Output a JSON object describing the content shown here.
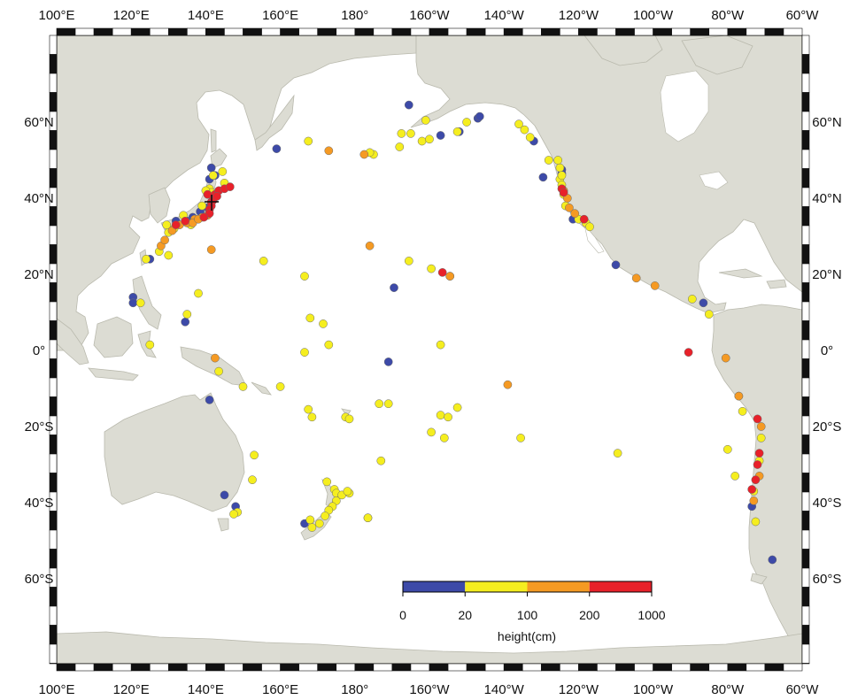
{
  "lon_labels": [
    "100°E",
    "120°E",
    "140°E",
    "160°E",
    "180°",
    "160°W",
    "140°W",
    "120°W",
    "100°W",
    "80°W",
    "60°W"
  ],
  "lat_labels": [
    "60°N",
    "40°N",
    "20°N",
    "0°",
    "20°S",
    "40°S",
    "60°S"
  ],
  "colorbar": {
    "title": "height(cm)",
    "tick_labels": [
      "0",
      "20",
      "100",
      "200",
      "1000"
    ],
    "colors": [
      "#3d4aa8",
      "#f5ee1f",
      "#f59a23",
      "#e8212a"
    ]
  },
  "epicenter_marker": "plus-icon",
  "observations": [
    {
      "lon": 132.0,
      "lat": 34.0,
      "c": 0
    },
    {
      "lon": 135.0,
      "lat": 34.0,
      "c": 0
    },
    {
      "lon": 136.5,
      "lat": 35.0,
      "c": 0
    },
    {
      "lon": 138.5,
      "lat": 36.5,
      "c": 0
    },
    {
      "lon": 140.5,
      "lat": 37.5,
      "c": 0
    },
    {
      "lon": 141.0,
      "lat": 45.0,
      "c": 0
    },
    {
      "lon": 142.5,
      "lat": 46.0,
      "c": 0
    },
    {
      "lon": 141.5,
      "lat": 48.0,
      "c": 0
    },
    {
      "lon": 125.0,
      "lat": 24.0,
      "c": 0
    },
    {
      "lon": 120.5,
      "lat": 14.0,
      "c": 0
    },
    {
      "lon": 120.5,
      "lat": 12.5,
      "c": 0
    },
    {
      "lon": 134.5,
      "lat": 7.5,
      "c": 0
    },
    {
      "lon": 145.0,
      "lat": -38.0,
      "c": 0
    },
    {
      "lon": 148.0,
      "lat": -41.0,
      "c": 0
    },
    {
      "lon": 141.0,
      "lat": -13.0,
      "c": 0
    },
    {
      "lon": 159.0,
      "lat": 53.0,
      "c": 0
    },
    {
      "lon": 166.5,
      "lat": -45.5,
      "c": 0
    },
    {
      "lon": -171.0,
      "lat": -3.0,
      "c": 0
    },
    {
      "lon": -169.5,
      "lat": 16.5,
      "c": 0
    },
    {
      "lon": -165.5,
      "lat": 64.5,
      "c": 0
    },
    {
      "lon": -157.0,
      "lat": 56.5,
      "c": 0
    },
    {
      "lon": -152.0,
      "lat": 57.5,
      "c": 0
    },
    {
      "lon": -147.0,
      "lat": 61.0,
      "c": 0
    },
    {
      "lon": -146.5,
      "lat": 61.5,
      "c": 0
    },
    {
      "lon": -132.0,
      "lat": 55.0,
      "c": 0
    },
    {
      "lon": -124.5,
      "lat": 47.5,
      "c": 0
    },
    {
      "lon": -124.5,
      "lat": 46.5,
      "c": 0
    },
    {
      "lon": -129.5,
      "lat": 45.5,
      "c": 0
    },
    {
      "lon": -121.5,
      "lat": 34.5,
      "c": 0
    },
    {
      "lon": -110.0,
      "lat": 22.5,
      "c": 0
    },
    {
      "lon": -86.5,
      "lat": 12.5,
      "c": 0
    },
    {
      "lon": -73.5,
      "lat": -41.0,
      "c": 0
    },
    {
      "lon": -68.0,
      "lat": -55.0,
      "c": 0
    },
    {
      "lon": -154.5,
      "lat": 19.5,
      "c": 1
    },
    {
      "lon": -159.5,
      "lat": 21.5,
      "c": 1
    },
    {
      "lon": -165.5,
      "lat": 23.5,
      "c": 1
    },
    {
      "lon": -175.0,
      "lat": 51.5,
      "c": 1
    },
    {
      "lon": -168.0,
      "lat": 53.5,
      "c": 1
    },
    {
      "lon": -162.0,
      "lat": 55.0,
      "c": 1
    },
    {
      "lon": -160.0,
      "lat": 55.5,
      "c": 1
    },
    {
      "lon": -152.5,
      "lat": 57.5,
      "c": 1
    },
    {
      "lon": -150.0,
      "lat": 60.0,
      "c": 1
    },
    {
      "lon": -136.0,
      "lat": 59.5,
      "c": 1
    },
    {
      "lon": -134.5,
      "lat": 58.0,
      "c": 1
    },
    {
      "lon": -133.0,
      "lat": 56.0,
      "c": 1
    },
    {
      "lon": -128.0,
      "lat": 50.0,
      "c": 1
    },
    {
      "lon": -125.0,
      "lat": 48.0,
      "c": 1
    },
    {
      "lon": -125.0,
      "lat": 45.0,
      "c": 1
    },
    {
      "lon": -124.5,
      "lat": 43.5,
      "c": 1
    },
    {
      "lon": -124.0,
      "lat": 41.0,
      "c": 1
    },
    {
      "lon": -120.0,
      "lat": 34.5,
      "c": 1
    },
    {
      "lon": -118.0,
      "lat": 33.5,
      "c": 1
    },
    {
      "lon": -117.0,
      "lat": 32.5,
      "c": 1
    },
    {
      "lon": -89.5,
      "lat": 13.5,
      "c": 1
    },
    {
      "lon": -85.0,
      "lat": 9.5,
      "c": 1
    },
    {
      "lon": -167.5,
      "lat": 57.0,
      "c": 1
    },
    {
      "lon": -176.0,
      "lat": 52.0,
      "c": 1
    },
    {
      "lon": 167.5,
      "lat": 55.0,
      "c": 1
    },
    {
      "lon": 131.5,
      "lat": 32.0,
      "c": 1
    },
    {
      "lon": 130.0,
      "lat": 31.0,
      "c": 1
    },
    {
      "lon": 127.5,
      "lat": 26.0,
      "c": 1
    },
    {
      "lon": 124.0,
      "lat": 24.0,
      "c": 1
    },
    {
      "lon": 122.5,
      "lat": 12.5,
      "c": 1
    },
    {
      "lon": 130.0,
      "lat": 25.0,
      "c": 1
    },
    {
      "lon": 135.0,
      "lat": 9.5,
      "c": 1
    },
    {
      "lon": 138.0,
      "lat": 15.0,
      "c": 1
    },
    {
      "lon": 125.0,
      "lat": 1.5,
      "c": 1
    },
    {
      "lon": 142.0,
      "lat": 46.0,
      "c": 1
    },
    {
      "lon": 141.0,
      "lat": 42.5,
      "c": 1
    },
    {
      "lon": 145.0,
      "lat": 44.0,
      "c": 1
    },
    {
      "lon": 144.5,
      "lat": 47.0,
      "c": 1
    },
    {
      "lon": 155.5,
      "lat": 23.5,
      "c": 1
    },
    {
      "lon": 166.5,
      "lat": 19.5,
      "c": 1
    },
    {
      "lon": 168.0,
      "lat": 8.5,
      "c": 1
    },
    {
      "lon": 171.5,
      "lat": 7.0,
      "c": 1
    },
    {
      "lon": 173.0,
      "lat": 1.5,
      "c": 1
    },
    {
      "lon": 166.5,
      "lat": -0.5,
      "c": 1
    },
    {
      "lon": 167.5,
      "lat": -15.5,
      "c": 1
    },
    {
      "lon": 168.5,
      "lat": -17.5,
      "c": 1
    },
    {
      "lon": 177.5,
      "lat": -17.5,
      "c": 1
    },
    {
      "lon": 178.5,
      "lat": -18.0,
      "c": 1
    },
    {
      "lon": -173.5,
      "lat": -14.0,
      "c": 1
    },
    {
      "lon": -171.0,
      "lat": -14.0,
      "c": 1
    },
    {
      "lon": -159.5,
      "lat": -21.5,
      "c": 1
    },
    {
      "lon": -157.0,
      "lat": -17.0,
      "c": 1
    },
    {
      "lon": -155.0,
      "lat": -17.5,
      "c": 1
    },
    {
      "lon": -152.5,
      "lat": -15.0,
      "c": 1
    },
    {
      "lon": -156.0,
      "lat": -23.0,
      "c": 1
    },
    {
      "lon": -135.5,
      "lat": -23.0,
      "c": 1
    },
    {
      "lon": -109.5,
      "lat": -27.0,
      "c": 1
    },
    {
      "lon": -157.0,
      "lat": 1.5,
      "c": 1
    },
    {
      "lon": -80.0,
      "lat": -26.0,
      "c": 1
    },
    {
      "lon": -77.0,
      "lat": -12.0,
      "c": 1
    },
    {
      "lon": -76.0,
      "lat": -16.0,
      "c": 1
    },
    {
      "lon": -71.0,
      "lat": -23.0,
      "c": 1
    },
    {
      "lon": -71.5,
      "lat": -29.0,
      "c": 1
    },
    {
      "lon": -72.5,
      "lat": -45.0,
      "c": 1
    },
    {
      "lon": 153.0,
      "lat": -27.5,
      "c": 1
    },
    {
      "lon": 152.5,
      "lat": -34.0,
      "c": 1
    },
    {
      "lon": 148.5,
      "lat": -42.5,
      "c": 1
    },
    {
      "lon": 147.5,
      "lat": -43.0,
      "c": 1
    },
    {
      "lon": 143.5,
      "lat": -5.5,
      "c": 1
    },
    {
      "lon": 150.0,
      "lat": -9.5,
      "c": 1
    },
    {
      "lon": 160.0,
      "lat": -9.5,
      "c": 1
    },
    {
      "lon": 187.0,
      "lat": -29.0,
      "c": 1
    },
    {
      "lon": 172.5,
      "lat": -34.5,
      "c": 1
    },
    {
      "lon": 174.5,
      "lat": -36.5,
      "c": 1
    },
    {
      "lon": 175.0,
      "lat": -37.5,
      "c": 1
    },
    {
      "lon": 176.5,
      "lat": -38.0,
      "c": 1
    },
    {
      "lon": 175.0,
      "lat": -39.5,
      "c": 1
    },
    {
      "lon": 174.0,
      "lat": -41.0,
      "c": 1
    },
    {
      "lon": 173.0,
      "lat": -42.0,
      "c": 1
    },
    {
      "lon": 172.0,
      "lat": -43.5,
      "c": 1
    },
    {
      "lon": 170.5,
      "lat": -45.5,
      "c": 1
    },
    {
      "lon": 168.5,
      "lat": -46.5,
      "c": 1
    },
    {
      "lon": 168.0,
      "lat": -44.5,
      "c": 1
    },
    {
      "lon": 178.5,
      "lat": -37.5,
      "c": 1
    },
    {
      "lon": 178.0,
      "lat": -37.0,
      "c": 1
    },
    {
      "lon": 183.5,
      "lat": -44.0,
      "c": 1
    },
    {
      "lon": -176.5,
      "lat": -44.0,
      "c": 1
    },
    {
      "lon": -165.0,
      "lat": 57.0,
      "c": 1
    },
    {
      "lon": -161.0,
      "lat": 60.5,
      "c": 1
    },
    {
      "lon": -125.5,
      "lat": 50.0,
      "c": 1
    },
    {
      "lon": -124.5,
      "lat": 46.0,
      "c": 1
    },
    {
      "lon": -123.5,
      "lat": 38.0,
      "c": 1
    },
    {
      "lon": -78.0,
      "lat": -33.0,
      "c": 1
    },
    {
      "lon": -73.0,
      "lat": -37.0,
      "c": 1
    },
    {
      "lon": 136.0,
      "lat": 33.0,
      "c": 1
    },
    {
      "lon": 129.5,
      "lat": 33.0,
      "c": 1
    },
    {
      "lon": 134.0,
      "lat": 35.5,
      "c": 1
    },
    {
      "lon": 139.0,
      "lat": 38.0,
      "c": 1
    },
    {
      "lon": 141.5,
      "lat": 41.5,
      "c": 1
    },
    {
      "lon": 140.0,
      "lat": 42.0,
      "c": 1
    },
    {
      "lon": 128.0,
      "lat": 27.5,
      "c": 2
    },
    {
      "lon": 129.0,
      "lat": 29.0,
      "c": 2
    },
    {
      "lon": 131.0,
      "lat": 31.5,
      "c": 2
    },
    {
      "lon": 133.0,
      "lat": 33.0,
      "c": 2
    },
    {
      "lon": 135.0,
      "lat": 33.5,
      "c": 2
    },
    {
      "lon": 137.0,
      "lat": 34.5,
      "c": 2
    },
    {
      "lon": 139.0,
      "lat": 35.0,
      "c": 2
    },
    {
      "lon": 140.5,
      "lat": 35.5,
      "c": 2
    },
    {
      "lon": 141.5,
      "lat": 26.5,
      "c": 2
    },
    {
      "lon": 142.5,
      "lat": -2.0,
      "c": 2
    },
    {
      "lon": -176.0,
      "lat": 27.5,
      "c": 2
    },
    {
      "lon": 173.0,
      "lat": 52.5,
      "c": 2
    },
    {
      "lon": -177.5,
      "lat": 51.5,
      "c": 2
    },
    {
      "lon": -139.0,
      "lat": -9.0,
      "c": 2
    },
    {
      "lon": -104.5,
      "lat": 19.0,
      "c": 2
    },
    {
      "lon": -99.5,
      "lat": 17.0,
      "c": 2
    },
    {
      "lon": -80.5,
      "lat": -2.0,
      "c": 2
    },
    {
      "lon": -77.0,
      "lat": -12.0,
      "c": 2
    },
    {
      "lon": -71.0,
      "lat": -20.0,
      "c": 2
    },
    {
      "lon": -71.5,
      "lat": -33.0,
      "c": 2
    },
    {
      "lon": -73.0,
      "lat": -39.5,
      "c": 2
    },
    {
      "lon": -124.0,
      "lat": 42.0,
      "c": 2
    },
    {
      "lon": -123.0,
      "lat": 40.0,
      "c": 2
    },
    {
      "lon": -122.5,
      "lat": 37.5,
      "c": 2
    },
    {
      "lon": -121.0,
      "lat": 36.0,
      "c": 2
    },
    {
      "lon": -154.5,
      "lat": 19.5,
      "c": 2
    },
    {
      "lon": 136.5,
      "lat": 33.5,
      "c": 2
    },
    {
      "lon": 138.0,
      "lat": 34.5,
      "c": 2
    },
    {
      "lon": 141.5,
      "lat": 39.0,
      "c": 3
    },
    {
      "lon": 142.0,
      "lat": 40.0,
      "c": 3
    },
    {
      "lon": 141.5,
      "lat": 38.0,
      "c": 3
    },
    {
      "lon": 141.0,
      "lat": 37.0,
      "c": 3
    },
    {
      "lon": 141.0,
      "lat": 36.0,
      "c": 3
    },
    {
      "lon": 142.5,
      "lat": 41.0,
      "c": 3
    },
    {
      "lon": 143.5,
      "lat": 42.0,
      "c": 3
    },
    {
      "lon": 145.0,
      "lat": 42.5,
      "c": 3
    },
    {
      "lon": 146.5,
      "lat": 43.0,
      "c": 3
    },
    {
      "lon": 140.5,
      "lat": 41.0,
      "c": 3
    },
    {
      "lon": 142.0,
      "lat": 39.5,
      "c": 3
    },
    {
      "lon": 143.0,
      "lat": 40.5,
      "c": 3
    },
    {
      "lon": 139.5,
      "lat": 35.0,
      "c": 3
    },
    {
      "lon": 134.5,
      "lat": 34.0,
      "c": 3
    },
    {
      "lon": 132.0,
      "lat": 33.0,
      "c": 3
    },
    {
      "lon": -156.5,
      "lat": 20.5,
      "c": 3
    },
    {
      "lon": -124.5,
      "lat": 42.5,
      "c": 3
    },
    {
      "lon": -124.0,
      "lat": 41.5,
      "c": 3
    },
    {
      "lon": -118.5,
      "lat": 34.5,
      "c": 3
    },
    {
      "lon": -72.0,
      "lat": -18.0,
      "c": 3
    },
    {
      "lon": -71.5,
      "lat": -27.0,
      "c": 3
    },
    {
      "lon": -72.0,
      "lat": -30.0,
      "c": 3
    },
    {
      "lon": -72.5,
      "lat": -34.0,
      "c": 3
    },
    {
      "lon": -73.5,
      "lat": -36.5,
      "c": 3
    },
    {
      "lon": -90.5,
      "lat": -0.5,
      "c": 3
    }
  ]
}
